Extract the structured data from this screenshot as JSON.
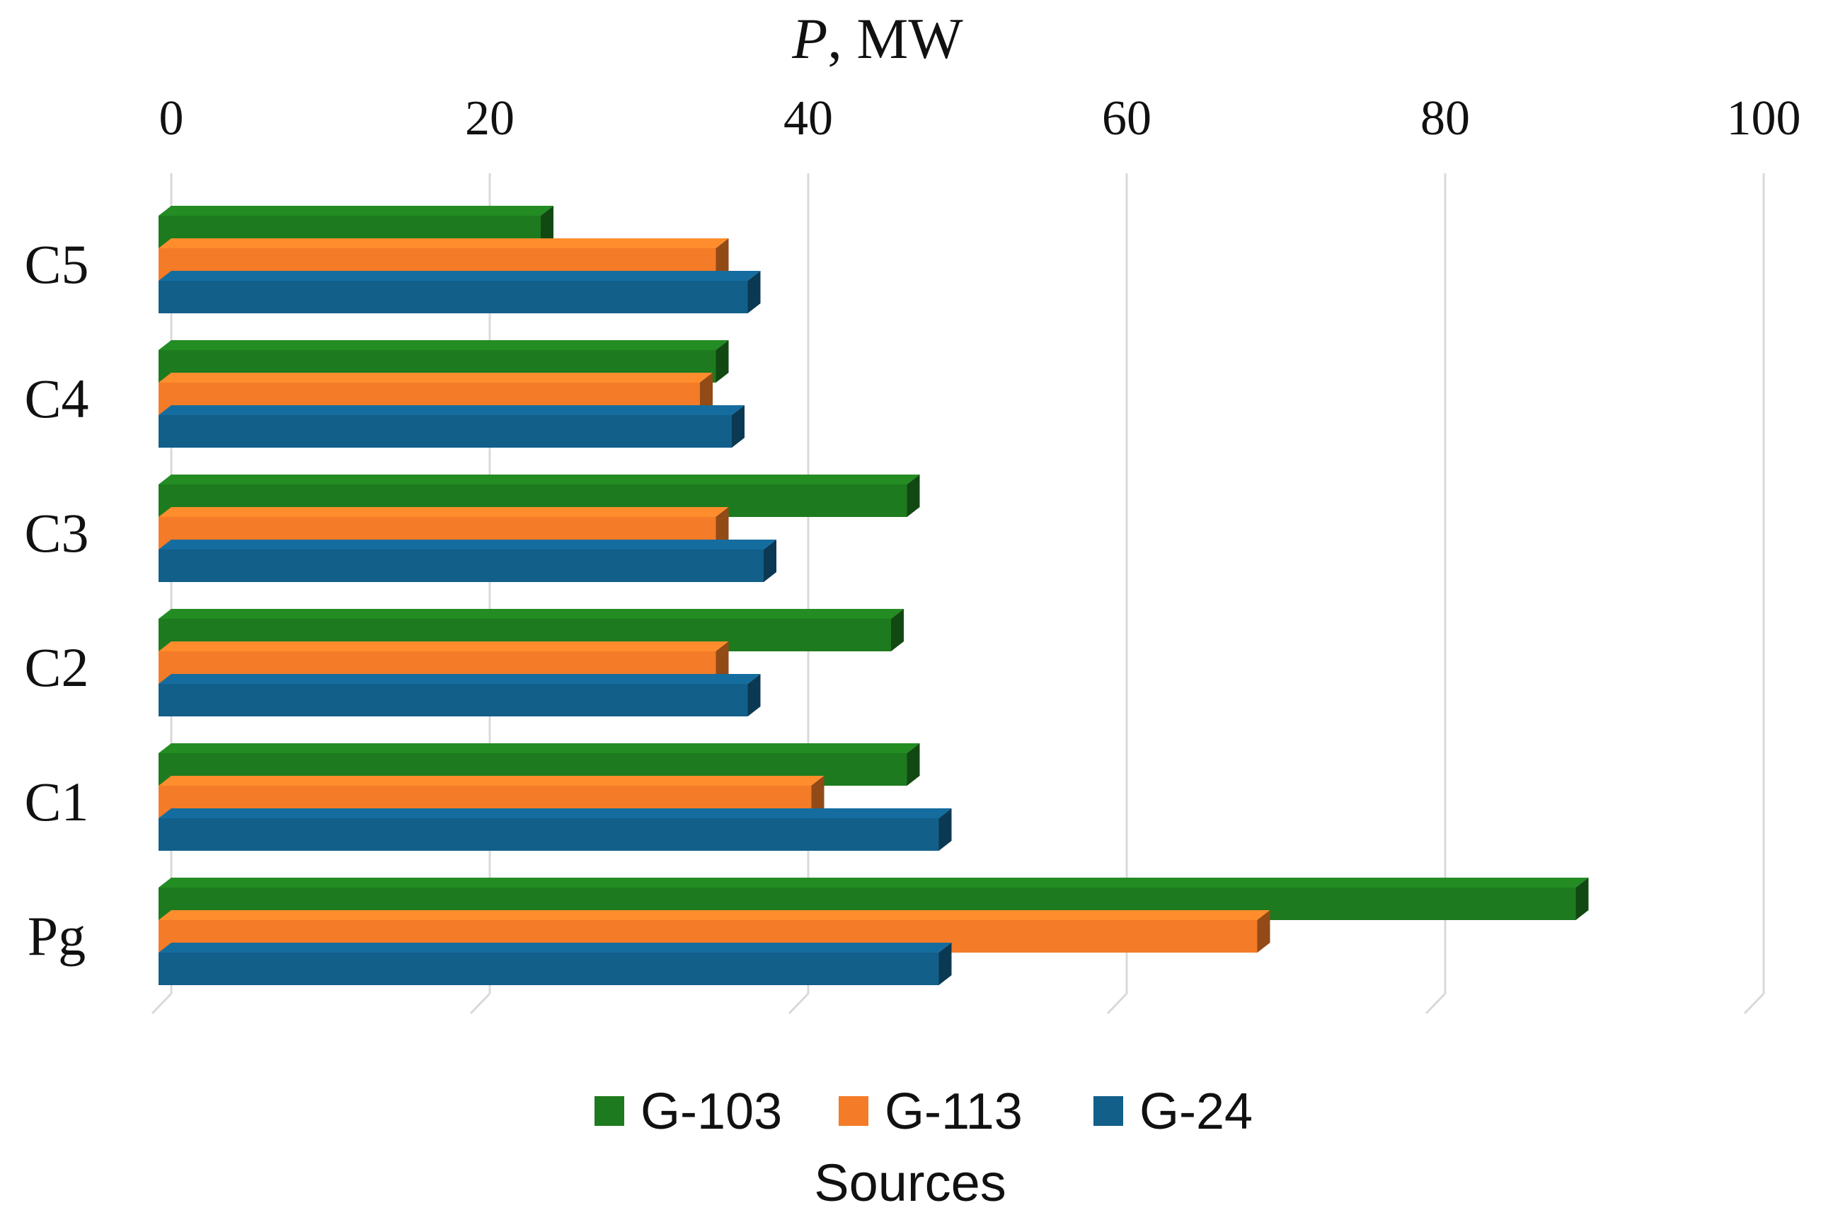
{
  "chart_data": {
    "type": "bar",
    "orientation": "horizontal",
    "title": "",
    "xlabel": "P",
    "xlabel_unit": ", MW",
    "ylabel": "",
    "xlim": [
      0,
      100
    ],
    "xticks": [
      "0",
      "20",
      "40",
      "60",
      "80",
      "100"
    ],
    "categories": [
      "C5",
      "C4",
      "C3",
      "C2",
      "C1",
      "Pg"
    ],
    "series": [
      {
        "name": "G-103",
        "color": "#1e7a1e",
        "values": [
          24,
          35,
          47,
          46,
          47,
          89
        ]
      },
      {
        "name": "G-113",
        "color": "#f47b27",
        "values": [
          35,
          34,
          35,
          35,
          41,
          69
        ]
      },
      {
        "name": "G-24",
        "color": "#125f8a",
        "values": [
          37,
          36,
          38,
          37,
          49,
          49
        ]
      }
    ],
    "legend_title": "Sources",
    "legend_position": "bottom",
    "grid": true,
    "style": "3d"
  }
}
